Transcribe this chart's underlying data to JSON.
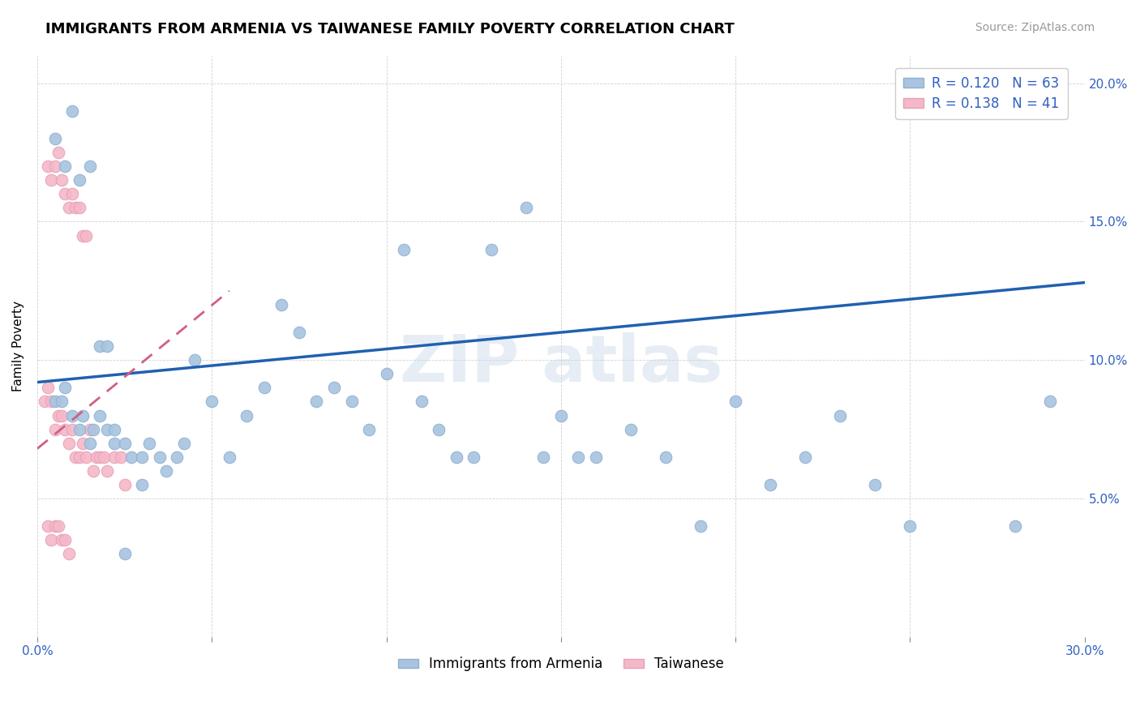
{
  "title": "IMMIGRANTS FROM ARMENIA VS TAIWANESE FAMILY POVERTY CORRELATION CHART",
  "source": "Source: ZipAtlas.com",
  "ylabel": "Family Poverty",
  "xlim": [
    0.0,
    0.3
  ],
  "ylim": [
    0.0,
    0.21
  ],
  "armenia_R": 0.12,
  "armenia_N": 63,
  "taiwanese_R": 0.138,
  "taiwanese_N": 41,
  "armenia_color": "#a8c4e0",
  "taiwanese_color": "#f4b8c8",
  "armenia_trend_color": "#2060b0",
  "taiwanese_trend_color": "#d06080",
  "title_fontsize": 13,
  "source_fontsize": 10,
  "axis_label_fontsize": 11,
  "tick_fontsize": 11,
  "legend_fontsize": 12,
  "armenia_trend_start_x": 0.0,
  "armenia_trend_end_x": 0.3,
  "armenia_trend_start_y": 0.092,
  "armenia_trend_end_y": 0.128,
  "taiwanese_trend_start_x": 0.0,
  "taiwanese_trend_end_x": 0.055,
  "taiwanese_trend_start_y": 0.068,
  "taiwanese_trend_end_y": 0.125,
  "armenia_x": [
    0.005,
    0.007,
    0.008,
    0.01,
    0.012,
    0.013,
    0.015,
    0.016,
    0.018,
    0.02,
    0.022,
    0.025,
    0.027,
    0.03,
    0.032,
    0.035,
    0.037,
    0.04,
    0.042,
    0.045,
    0.05,
    0.055,
    0.06,
    0.065,
    0.07,
    0.075,
    0.08,
    0.085,
    0.09,
    0.095,
    0.1,
    0.105,
    0.11,
    0.115,
    0.12,
    0.125,
    0.13,
    0.14,
    0.145,
    0.15,
    0.155,
    0.16,
    0.17,
    0.18,
    0.19,
    0.2,
    0.21,
    0.22,
    0.23,
    0.24,
    0.25,
    0.28,
    0.29,
    0.005,
    0.008,
    0.01,
    0.012,
    0.015,
    0.018,
    0.02,
    0.022,
    0.025,
    0.03
  ],
  "armenia_y": [
    0.085,
    0.085,
    0.09,
    0.08,
    0.075,
    0.08,
    0.07,
    0.075,
    0.08,
    0.075,
    0.07,
    0.07,
    0.065,
    0.065,
    0.07,
    0.065,
    0.06,
    0.065,
    0.07,
    0.1,
    0.085,
    0.065,
    0.08,
    0.09,
    0.12,
    0.11,
    0.085,
    0.09,
    0.085,
    0.075,
    0.095,
    0.14,
    0.085,
    0.075,
    0.065,
    0.065,
    0.14,
    0.155,
    0.065,
    0.08,
    0.065,
    0.065,
    0.075,
    0.065,
    0.04,
    0.085,
    0.055,
    0.065,
    0.08,
    0.055,
    0.04,
    0.04,
    0.085,
    0.18,
    0.17,
    0.19,
    0.165,
    0.17,
    0.105,
    0.105,
    0.075,
    0.03,
    0.055
  ],
  "taiwanese_x": [
    0.002,
    0.003,
    0.004,
    0.005,
    0.006,
    0.007,
    0.008,
    0.009,
    0.01,
    0.011,
    0.012,
    0.013,
    0.014,
    0.015,
    0.016,
    0.017,
    0.018,
    0.019,
    0.02,
    0.022,
    0.024,
    0.025,
    0.003,
    0.004,
    0.005,
    0.006,
    0.007,
    0.008,
    0.009,
    0.01,
    0.011,
    0.012,
    0.013,
    0.014,
    0.003,
    0.004,
    0.005,
    0.006,
    0.007,
    0.008,
    0.009
  ],
  "taiwanese_y": [
    0.085,
    0.09,
    0.085,
    0.075,
    0.08,
    0.08,
    0.075,
    0.07,
    0.075,
    0.065,
    0.065,
    0.07,
    0.065,
    0.075,
    0.06,
    0.065,
    0.065,
    0.065,
    0.06,
    0.065,
    0.065,
    0.055,
    0.17,
    0.165,
    0.17,
    0.175,
    0.165,
    0.16,
    0.155,
    0.16,
    0.155,
    0.155,
    0.145,
    0.145,
    0.04,
    0.035,
    0.04,
    0.04,
    0.035,
    0.035,
    0.03
  ]
}
